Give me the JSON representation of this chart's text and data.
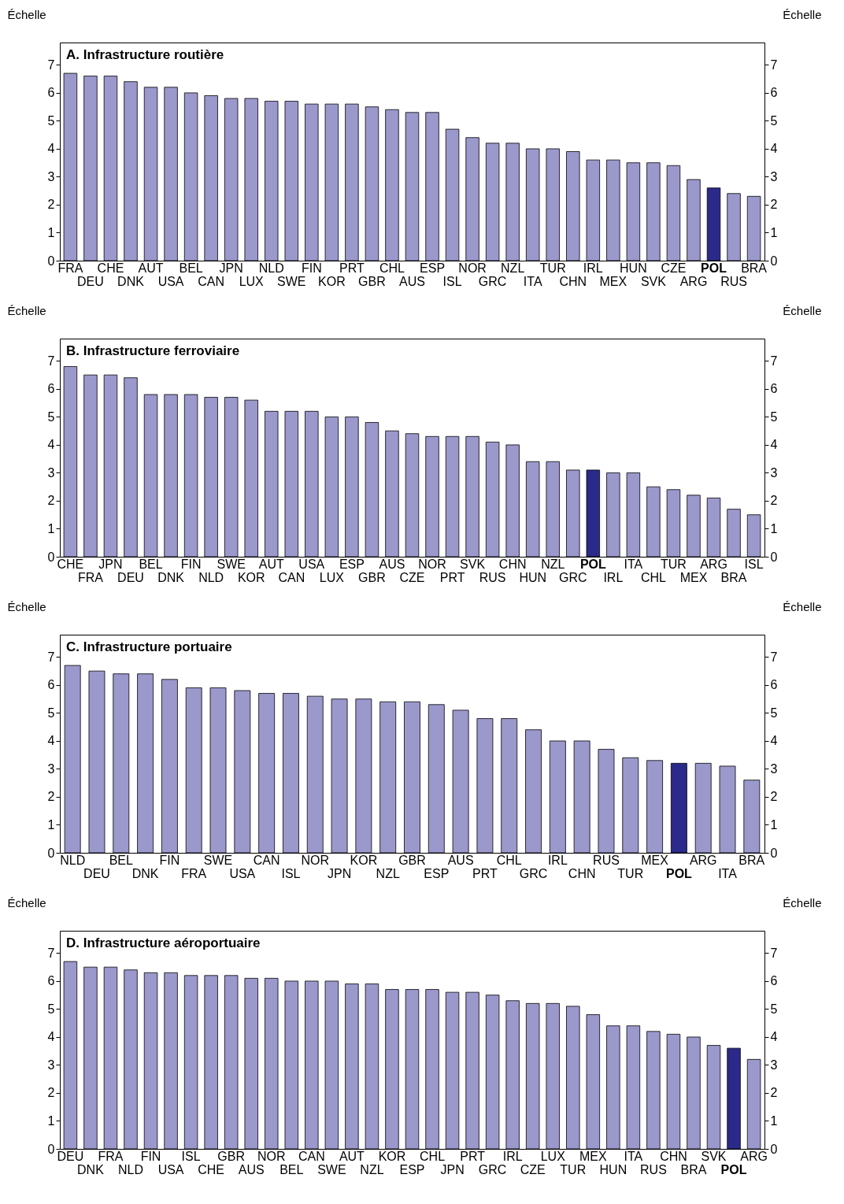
{
  "chart_data": [
    {
      "type": "bar",
      "title": "A. Infrastructure routière",
      "ylabel": "Échelle",
      "y2label": "Échelle",
      "ylim": [
        0,
        7.8
      ],
      "yticks": [
        0,
        1,
        2,
        3,
        4,
        5,
        6,
        7
      ],
      "y2lim": [
        0,
        7.8
      ],
      "y2ticks": [
        0,
        1,
        2,
        3,
        4,
        5,
        6,
        7
      ],
      "categories": [
        "FRA",
        "DEU",
        "CHE",
        "DNK",
        "AUT",
        "USA",
        "BEL",
        "CAN",
        "JPN",
        "LUX",
        "NLD",
        "SWE",
        "FIN",
        "KOR",
        "PRT",
        "GBR",
        "CHL",
        "AUS",
        "ESP",
        "ISL",
        "NOR",
        "GRC",
        "NZL",
        "ITA",
        "TUR",
        "CHN",
        "IRL",
        "MEX",
        "HUN",
        "SVK",
        "CZE",
        "ARG",
        "POL",
        "RUS",
        "BRA"
      ],
      "values": [
        6.7,
        6.6,
        6.6,
        6.4,
        6.2,
        6.2,
        6.0,
        5.9,
        5.8,
        5.8,
        5.7,
        5.7,
        5.6,
        5.6,
        5.6,
        5.5,
        5.4,
        5.3,
        5.3,
        4.7,
        4.4,
        4.2,
        4.2,
        4.0,
        4.0,
        3.9,
        3.6,
        3.6,
        3.5,
        3.5,
        3.4,
        2.9,
        2.6,
        2.4,
        2.3
      ],
      "colors": [
        "#9b98cc",
        "#9b98cc",
        "#9b98cc",
        "#9b98cc",
        "#9b98cc",
        "#9b98cc",
        "#9b98cc",
        "#9b98cc",
        "#9b98cc",
        "#9b98cc",
        "#9b98cc",
        "#9b98cc",
        "#9b98cc",
        "#9b98cc",
        "#9b98cc",
        "#9b98cc",
        "#9b98cc",
        "#9b98cc",
        "#9b98cc",
        "#9b98cc",
        "#9b98cc",
        "#9b98cc",
        "#9b98cc",
        "#9b98cc",
        "#9b98cc",
        "#9b98cc",
        "#9b98cc",
        "#9b98cc",
        "#9b98cc",
        "#9b98cc",
        "#9b98cc",
        "#9b98cc",
        "#2b2a8a",
        "#9b98cc",
        "#9b98cc"
      ]
    },
    {
      "type": "bar",
      "title": "B. Infrastructure ferroviaire",
      "ylabel": "Échelle",
      "y2label": "Échelle",
      "ylim": [
        0,
        7.8
      ],
      "yticks": [
        0,
        1,
        2,
        3,
        4,
        5,
        6,
        7
      ],
      "y2lim": [
        0,
        7.8
      ],
      "y2ticks": [
        0,
        1,
        2,
        3,
        4,
        5,
        6,
        7
      ],
      "categories": [
        "CHE",
        "FRA",
        "JPN",
        "DEU",
        "BEL",
        "DNK",
        "FIN",
        "NLD",
        "SWE",
        "KOR",
        "AUT",
        "CAN",
        "USA",
        "LUX",
        "ESP",
        "GBR",
        "AUS",
        "CZE",
        "NOR",
        "PRT",
        "SVK",
        "RUS",
        "CHN",
        "HUN",
        "NZL",
        "GRC",
        "POL",
        "IRL",
        "ITA",
        "CHL",
        "TUR",
        "MEX",
        "ARG",
        "BRA",
        "ISL"
      ],
      "values": [
        6.8,
        6.5,
        6.5,
        6.4,
        5.8,
        5.8,
        5.8,
        5.7,
        5.7,
        5.6,
        5.2,
        5.2,
        5.2,
        5.0,
        5.0,
        4.8,
        4.5,
        4.4,
        4.3,
        4.3,
        4.3,
        4.1,
        4.0,
        3.4,
        3.4,
        3.1,
        3.1,
        3.0,
        3.0,
        2.5,
        2.4,
        2.2,
        2.1,
        1.7,
        1.5
      ],
      "colors": [
        "#9b98cc",
        "#9b98cc",
        "#9b98cc",
        "#9b98cc",
        "#9b98cc",
        "#9b98cc",
        "#9b98cc",
        "#9b98cc",
        "#9b98cc",
        "#9b98cc",
        "#9b98cc",
        "#9b98cc",
        "#9b98cc",
        "#9b98cc",
        "#9b98cc",
        "#9b98cc",
        "#9b98cc",
        "#9b98cc",
        "#9b98cc",
        "#9b98cc",
        "#9b98cc",
        "#9b98cc",
        "#9b98cc",
        "#9b98cc",
        "#9b98cc",
        "#9b98cc",
        "#2b2a8a",
        "#9b98cc",
        "#9b98cc",
        "#9b98cc",
        "#9b98cc",
        "#9b98cc",
        "#9b98cc",
        "#9b98cc",
        "#9b98cc"
      ]
    },
    {
      "type": "bar",
      "title": "C. Infrastructure portuaire",
      "ylabel": "Échelle",
      "y2label": "Échelle",
      "ylim": [
        0,
        7.8
      ],
      "yticks": [
        0,
        1,
        2,
        3,
        4,
        5,
        6,
        7
      ],
      "y2lim": [
        0,
        7.8
      ],
      "y2ticks": [
        0,
        1,
        2,
        3,
        4,
        5,
        6,
        7
      ],
      "categories": [
        "NLD",
        "DEU",
        "BEL",
        "DNK",
        "FIN",
        "FRA",
        "SWE",
        "USA",
        "CAN",
        "ISL",
        "NOR",
        "JPN",
        "KOR",
        "NZL",
        "GBR",
        "ESP",
        "AUS",
        "PRT",
        "CHL",
        "GRC",
        "IRL",
        "CHN",
        "RUS",
        "TUR",
        "MEX",
        "POL",
        "ARG",
        "ITA",
        "BRA"
      ],
      "values": [
        6.7,
        6.5,
        6.4,
        6.4,
        6.2,
        5.9,
        5.9,
        5.8,
        5.7,
        5.7,
        5.6,
        5.5,
        5.5,
        5.4,
        5.4,
        5.3,
        5.1,
        4.8,
        4.8,
        4.4,
        4.0,
        4.0,
        3.7,
        3.4,
        3.3,
        3.2,
        3.2,
        3.1,
        2.6
      ],
      "colors": [
        "#9b98cc",
        "#9b98cc",
        "#9b98cc",
        "#9b98cc",
        "#9b98cc",
        "#9b98cc",
        "#9b98cc",
        "#9b98cc",
        "#9b98cc",
        "#9b98cc",
        "#9b98cc",
        "#9b98cc",
        "#9b98cc",
        "#9b98cc",
        "#9b98cc",
        "#9b98cc",
        "#9b98cc",
        "#9b98cc",
        "#9b98cc",
        "#9b98cc",
        "#9b98cc",
        "#9b98cc",
        "#9b98cc",
        "#9b98cc",
        "#9b98cc",
        "#2b2a8a",
        "#9b98cc",
        "#9b98cc",
        "#9b98cc"
      ]
    },
    {
      "type": "bar",
      "title": "D. Infrastructure aéroportuaire",
      "ylabel": "Échelle",
      "y2label": "Échelle",
      "ylim": [
        0,
        7.8
      ],
      "yticks": [
        0,
        1,
        2,
        3,
        4,
        5,
        6,
        7
      ],
      "y2lim": [
        0,
        7.8
      ],
      "y2ticks": [
        0,
        1,
        2,
        3,
        4,
        5,
        6,
        7
      ],
      "categories": [
        "DEU",
        "DNK",
        "FRA",
        "NLD",
        "FIN",
        "USA",
        "ISL",
        "CHE",
        "GBR",
        "AUS",
        "NOR",
        "BEL",
        "CAN",
        "SWE",
        "AUT",
        "NZL",
        "KOR",
        "ESP",
        "CHL",
        "JPN",
        "PRT",
        "GRC",
        "IRL",
        "CZE",
        "LUX",
        "TUR",
        "MEX",
        "HUN",
        "ITA",
        "RUS",
        "CHN",
        "BRA",
        "SVK",
        "POL",
        "ARG"
      ],
      "values": [
        6.7,
        6.5,
        6.5,
        6.4,
        6.3,
        6.3,
        6.2,
        6.2,
        6.2,
        6.1,
        6.1,
        6.0,
        6.0,
        6.0,
        5.9,
        5.9,
        5.7,
        5.7,
        5.7,
        5.6,
        5.6,
        5.5,
        5.3,
        5.2,
        5.2,
        5.1,
        4.8,
        4.4,
        4.4,
        4.2,
        4.1,
        4.0,
        3.7,
        3.6,
        3.2
      ],
      "colors": [
        "#9b98cc",
        "#9b98cc",
        "#9b98cc",
        "#9b98cc",
        "#9b98cc",
        "#9b98cc",
        "#9b98cc",
        "#9b98cc",
        "#9b98cc",
        "#9b98cc",
        "#9b98cc",
        "#9b98cc",
        "#9b98cc",
        "#9b98cc",
        "#9b98cc",
        "#9b98cc",
        "#9b98cc",
        "#9b98cc",
        "#9b98cc",
        "#9b98cc",
        "#9b98cc",
        "#9b98cc",
        "#9b98cc",
        "#9b98cc",
        "#9b98cc",
        "#9b98cc",
        "#9b98cc",
        "#9b98cc",
        "#9b98cc",
        "#9b98cc",
        "#9b98cc",
        "#9b98cc",
        "#9b98cc",
        "#2b2a8a",
        "#9b98cc"
      ]
    }
  ]
}
